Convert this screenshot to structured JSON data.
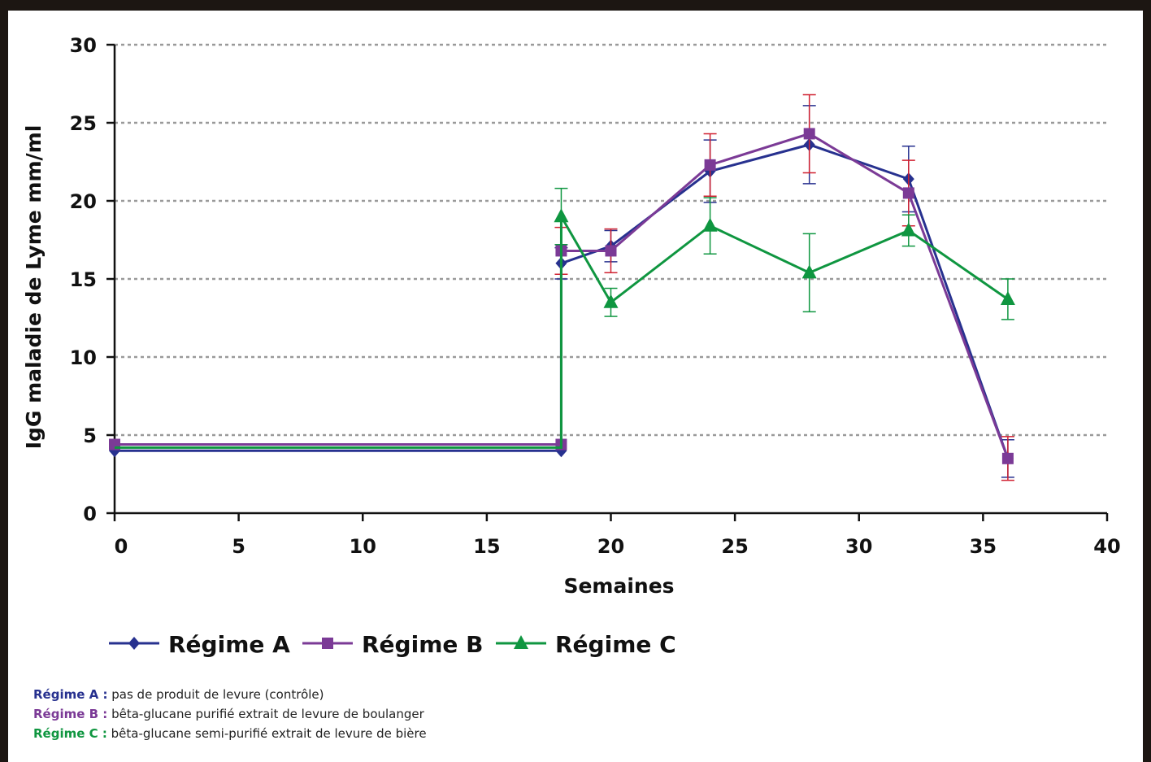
{
  "chart_data": {
    "type": "line",
    "xlabel": "Semaines",
    "ylabel": "IgG maladie de Lyme mm/ml",
    "xlim": [
      0,
      40
    ],
    "ylim": [
      0,
      30
    ],
    "xticks": [
      0,
      5,
      10,
      15,
      20,
      25,
      30,
      35,
      40
    ],
    "yticks": [
      0,
      5,
      10,
      15,
      20,
      25,
      30
    ],
    "grid": "horizontal dashed",
    "legend_position": "bottom",
    "series": [
      {
        "name": "Régime A",
        "color": "#27318f",
        "marker": "diamond",
        "points": [
          {
            "x": 0,
            "y": 4.0
          },
          {
            "x": 18,
            "y": 4.0
          },
          {
            "x": 18,
            "y": 16.0,
            "err": 1.0
          },
          {
            "x": 20,
            "y": 17.1,
            "err": 1.0
          },
          {
            "x": 24,
            "y": 21.9,
            "err": 2.0
          },
          {
            "x": 28,
            "y": 23.6,
            "err": 2.5
          },
          {
            "x": 32,
            "y": 21.4,
            "err": 2.1
          },
          {
            "x": 36,
            "y": 3.5,
            "err": 1.2
          }
        ]
      },
      {
        "name": "Régime B",
        "color": "#7b3a96",
        "marker": "square",
        "points": [
          {
            "x": 0,
            "y": 4.4
          },
          {
            "x": 18,
            "y": 4.4
          },
          {
            "x": 18,
            "y": 16.8,
            "err": 1.5
          },
          {
            "x": 20,
            "y": 16.8,
            "err": 1.4
          },
          {
            "x": 24,
            "y": 22.3,
            "err": 2.0
          },
          {
            "x": 28,
            "y": 24.3,
            "err": 2.5
          },
          {
            "x": 32,
            "y": 20.5,
            "err": 2.1
          },
          {
            "x": 36,
            "y": 3.5,
            "err": 1.4
          }
        ]
      },
      {
        "name": "Régime C",
        "color": "#0f9640",
        "marker": "triangle",
        "points": [
          {
            "x": 0,
            "y": 4.2
          },
          {
            "x": 18,
            "y": 4.2
          },
          {
            "x": 18,
            "y": 19.0,
            "err": 1.8
          },
          {
            "x": 20,
            "y": 13.5,
            "err": 0.9
          },
          {
            "x": 24,
            "y": 18.4,
            "err": 1.8
          },
          {
            "x": 28,
            "y": 15.4,
            "err": 2.5
          },
          {
            "x": 32,
            "y": 18.1,
            "err": 1.0
          },
          {
            "x": 36,
            "y": 13.7,
            "err": 1.3
          }
        ]
      }
    ]
  },
  "footnotes": [
    {
      "key": "Régime A :",
      "text": "pas de produit de levure (contrôle)",
      "color": "#27318f"
    },
    {
      "key": "Régime B :",
      "text": "bêta-glucane purifié extrait de levure de boulanger",
      "color": "#7b3a96"
    },
    {
      "key": "Régime C :",
      "text": "bêta-glucane semi-purifié extrait de levure de bière",
      "color": "#0f9640"
    }
  ]
}
